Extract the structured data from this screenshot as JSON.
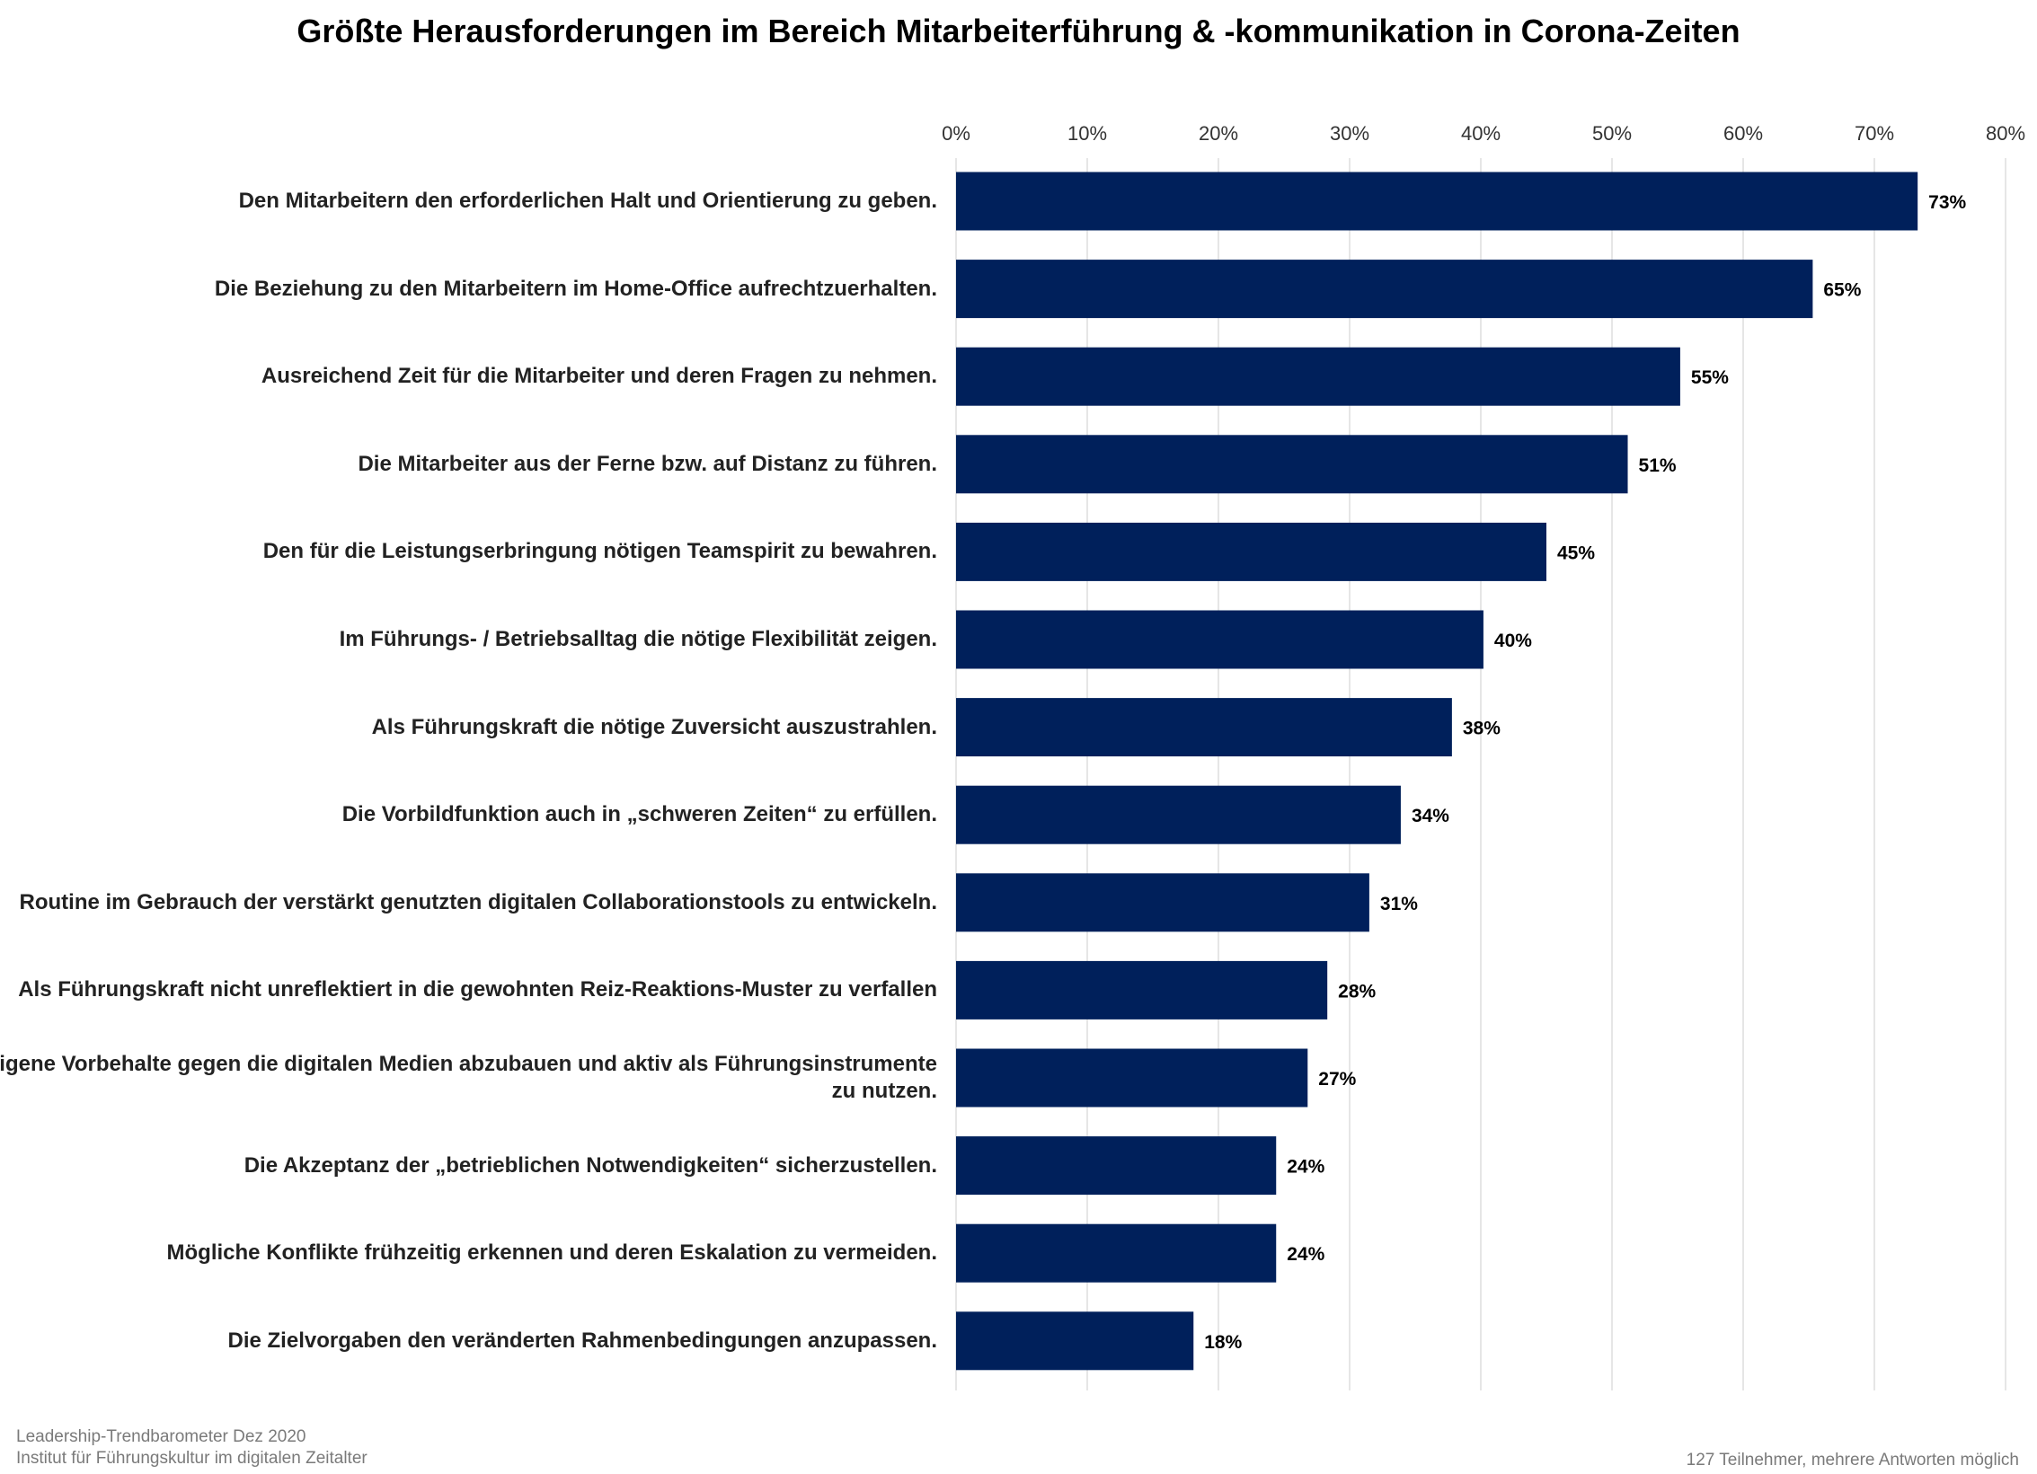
{
  "chart_data": {
    "type": "bar",
    "orientation": "horizontal",
    "title": "Größte Herausforderungen im Bereich Mitarbeiterführung & -kommunikation in Corona-Zeiten",
    "xlabel": "",
    "ylabel": "",
    "xlim": [
      0,
      80
    ],
    "ticks": [
      0,
      10,
      20,
      30,
      40,
      50,
      60,
      70,
      80
    ],
    "tick_labels": [
      "0%",
      "10%",
      "20%",
      "30%",
      "40%",
      "50%",
      "60%",
      "70%",
      "80%"
    ],
    "grid": true,
    "bar_color": "#00205B",
    "categories": [
      "Den Mitarbeitern den erforderlichen Halt und Orientierung zu geben.",
      "Die Beziehung zu den Mitarbeitern im Home-Office aufrechtzuerhalten.",
      "Ausreichend Zeit für die Mitarbeiter und deren Fragen zu nehmen.",
      "Die Mitarbeiter aus der Ferne bzw. auf Distanz zu führen.",
      "Den für die Leistungserbringung nötigen Teamspirit zu bewahren.",
      "Im Führungs- / Betriebsalltag die nötige Flexibilität zeigen.",
      "Als Führungskraft die nötige Zuversicht auszustrahlen.",
      "Die Vorbildfunktion auch in „schweren Zeiten“ zu erfüllen.",
      "Routine im Gebrauch der verstärkt genutzten digitalen Collaborationstools zu entwickeln.",
      "Als Führungskraft nicht unreflektiert in die gewohnten Reiz-Reaktions-Muster zu verfallen",
      "Eigene Vorbehalte gegen die digitalen Medien abzubauen und aktiv als Führungsinstrumente zu nutzen.",
      "Die Akzeptanz der „betrieblichen Notwendigkeiten“ sicherzustellen.",
      "Mögliche Konflikte frühzeitig erkennen und deren Eskalation zu vermeiden.",
      "Die Zielvorgaben den veränderten Rahmenbedingungen anzupassen."
    ],
    "values": [
      73.3,
      65.3,
      55.2,
      51.2,
      45.0,
      40.2,
      37.8,
      33.9,
      31.5,
      28.3,
      26.8,
      24.4,
      24.4,
      18.1
    ],
    "value_labels": [
      "73%",
      "65%",
      "55%",
      "51%",
      "45%",
      "40%",
      "38%",
      "34%",
      "31%",
      "28%",
      "27%",
      "24%",
      "24%",
      "18%"
    ]
  },
  "footer": {
    "source_line1": "Leadership-Trendbarometer Dez 2020",
    "source_line2": "Institut für Führungskultur im digitalen Zeitalter",
    "note": "127 Teilnehmer, mehrere Antworten möglich"
  }
}
